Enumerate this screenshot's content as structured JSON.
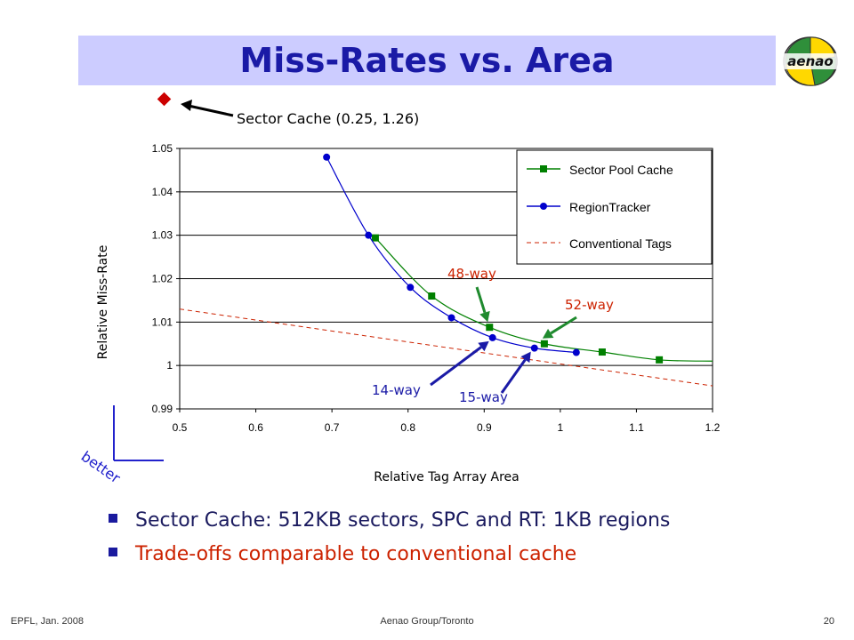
{
  "title": "Miss-Rates vs. Area",
  "logo_text": "aenao",
  "chart_data": {
    "type": "line",
    "xlabel": "Relative Tag Array Area",
    "ylabel": "Relative Miss-Rate",
    "xlim": [
      0.5,
      1.2
    ],
    "ylim": [
      0.99,
      1.05
    ],
    "xticks": [
      "0.5",
      "0.6",
      "0.7",
      "0.8",
      "0.9",
      "1",
      "1.1",
      "1.2"
    ],
    "yticks": [
      "0.99",
      "1",
      "1.01",
      "1.02",
      "1.03",
      "1.04",
      "1.05"
    ],
    "grid": "horizontal",
    "legend_position": "top-right",
    "series": [
      {
        "name": "Sector Pool Cache",
        "color": "#008000",
        "marker": "square",
        "x": [
          0.757,
          0.831,
          0.907,
          0.979,
          1.055,
          1.13
        ],
        "y": [
          1.0294,
          1.016,
          1.0088,
          1.005,
          1.0031,
          1.0013
        ]
      },
      {
        "name": "RegionTracker",
        "color": "#0000cc",
        "marker": "circle",
        "x": [
          0.693,
          0.748,
          0.803,
          0.857,
          0.911,
          0.966,
          1.021
        ],
        "y": [
          1.048,
          1.03,
          1.018,
          1.011,
          1.0064,
          1.004,
          1.003
        ]
      },
      {
        "name": "Conventional Tags",
        "color": "#cc2200",
        "marker": "none",
        "dashed": true,
        "x": [
          0.5,
          1.2
        ],
        "y": [
          1.013,
          0.9953
        ]
      }
    ],
    "annotations": [
      {
        "label": "48-way",
        "color": "#cc2200",
        "x": 0.907,
        "y": 1.0088
      },
      {
        "label": "52-way",
        "color": "#cc2200",
        "x": 0.979,
        "y": 1.005
      },
      {
        "label": "14-way",
        "color": "#1a1aa6",
        "x": 0.911,
        "y": 1.0064
      },
      {
        "label": "15-way",
        "color": "#1a1aa6",
        "x": 0.966,
        "y": 1.004
      }
    ],
    "outlier": {
      "label": "Sector Cache (0.25, 1.26)",
      "color": "#cc0000"
    },
    "better_label": "better"
  },
  "bullets": [
    "Sector Cache: 512KB sectors, SPC and RT: 1KB regions",
    "Trade-offs comparable to conventional cache"
  ],
  "footer": {
    "left": "EPFL, Jan. 2008",
    "center": "Aenao Group/Toronto",
    "right": "20"
  }
}
